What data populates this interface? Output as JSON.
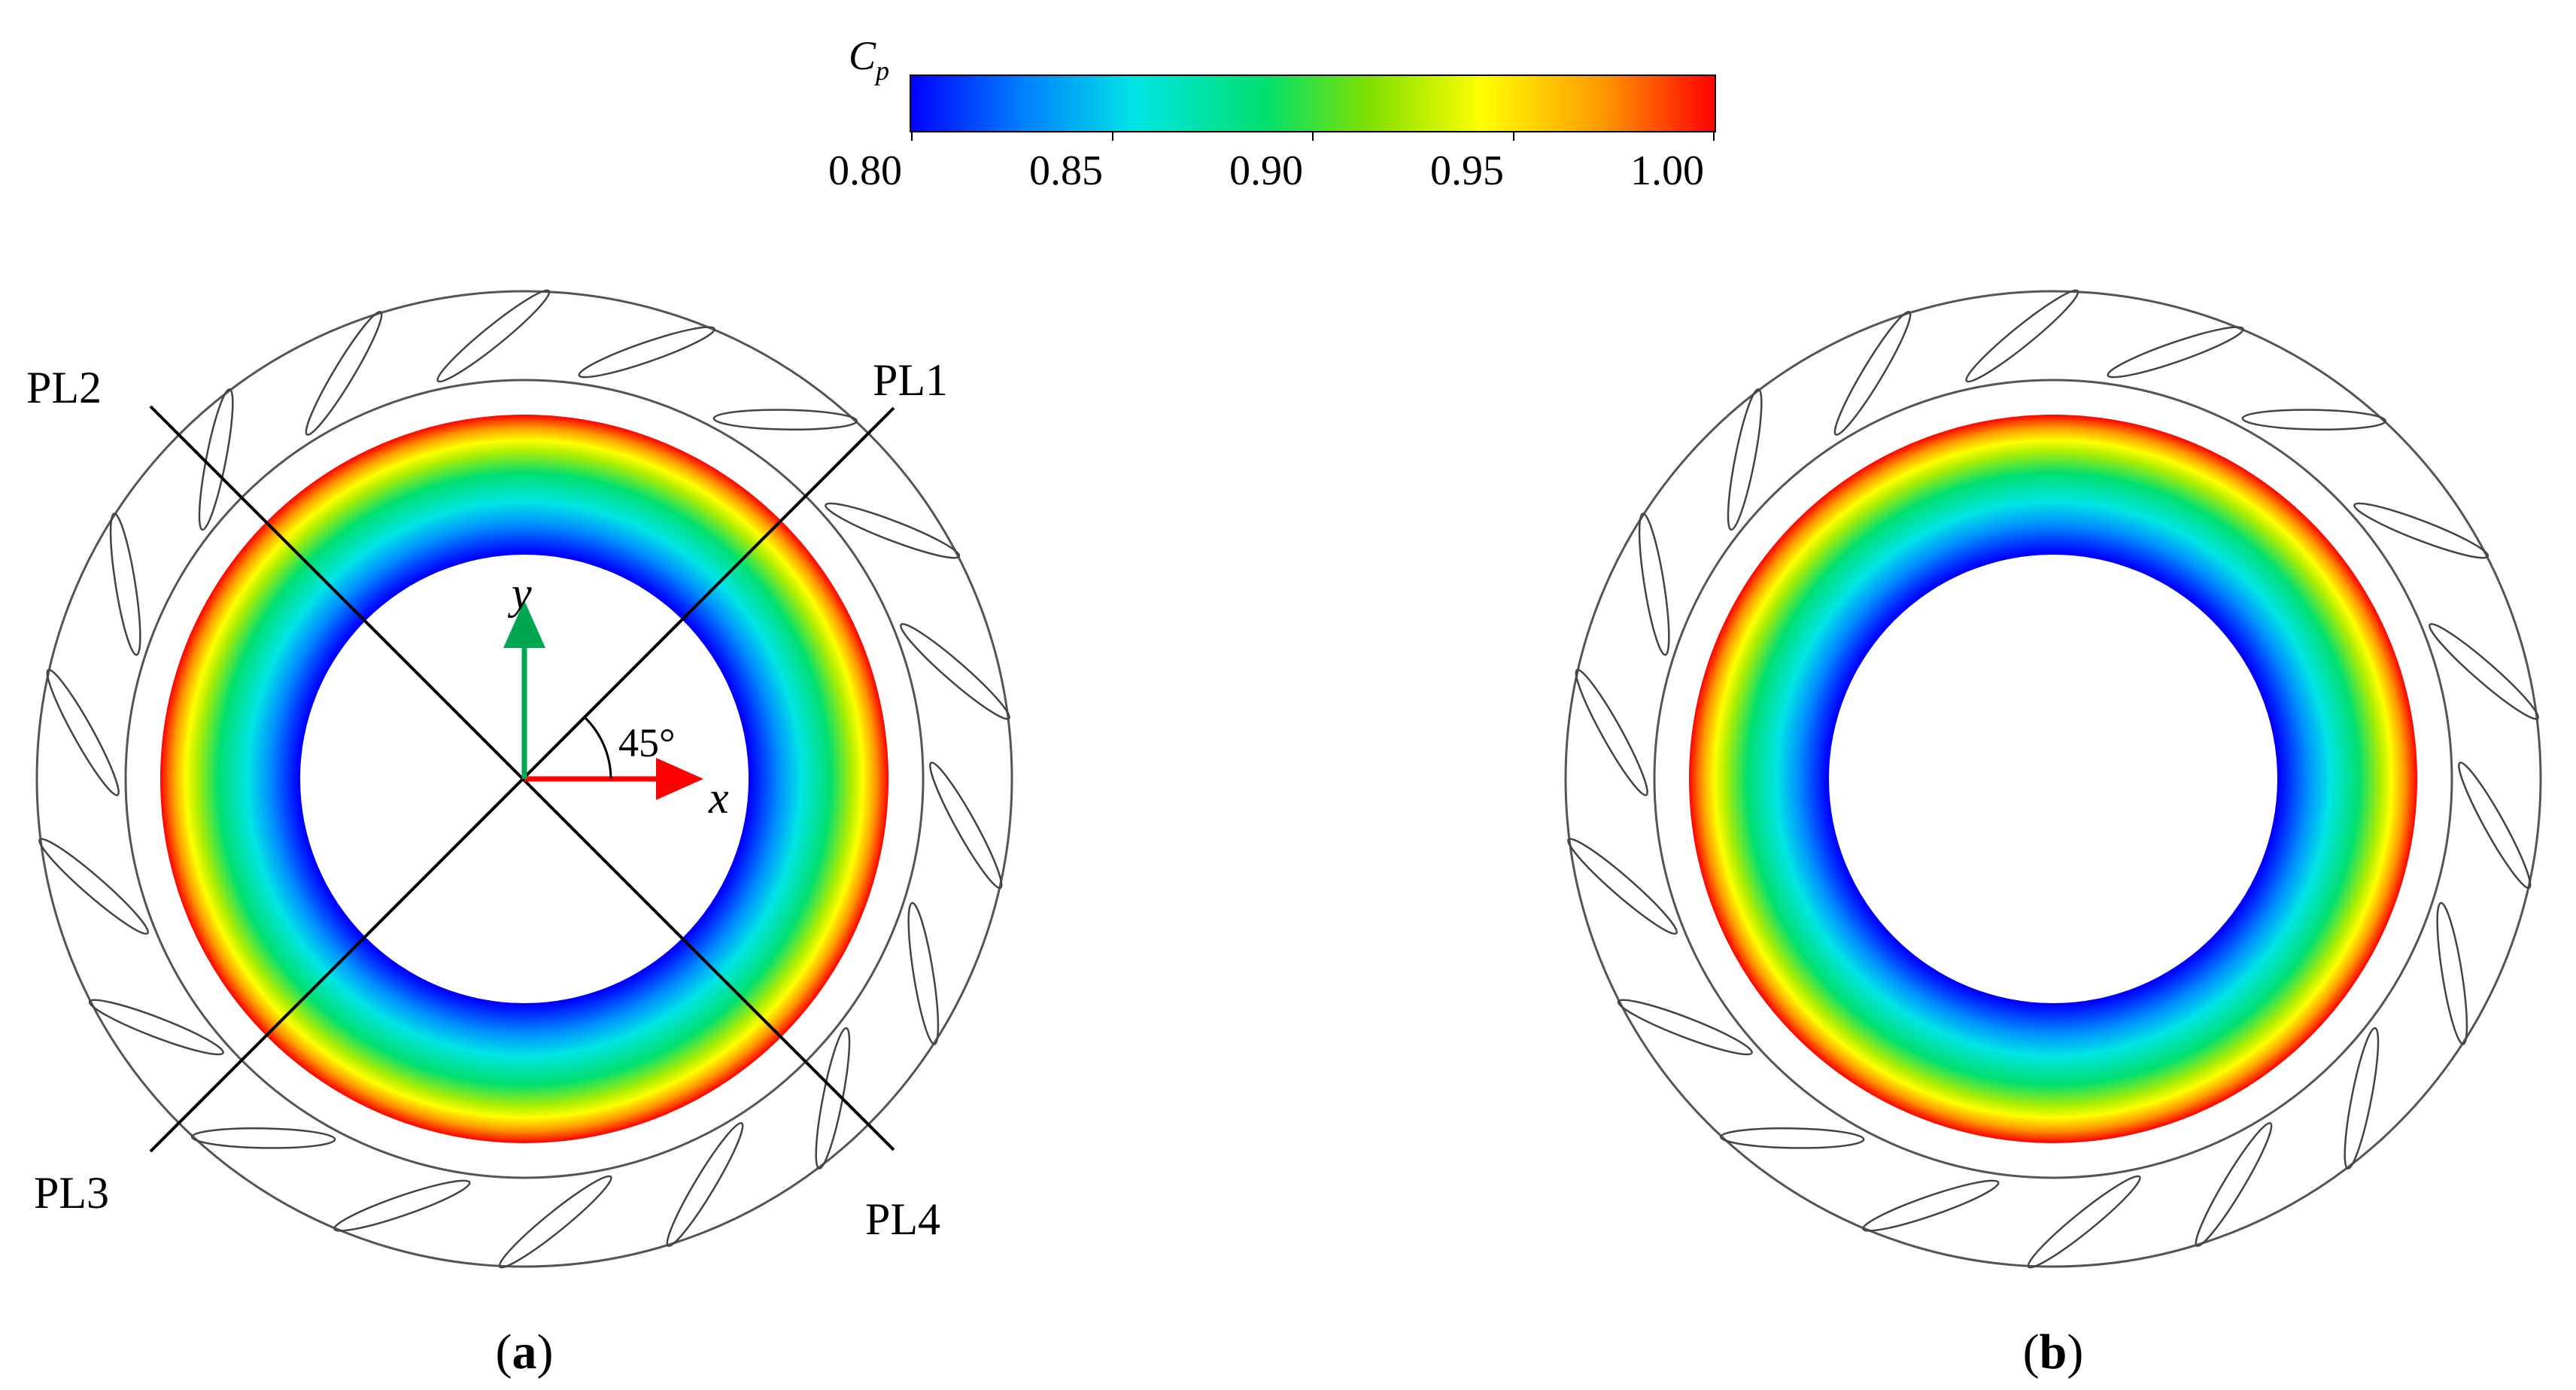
{
  "colorbar": {
    "symbol": "C",
    "subscript": "p",
    "ticks": [
      "0.80",
      "0.85",
      "0.90",
      "0.95",
      "1.00"
    ],
    "colors": [
      "#0000ff",
      "#0080ff",
      "#00e5e5",
      "#00e070",
      "#7fe000",
      "#ffff00",
      "#ff9900",
      "#ff0000"
    ]
  },
  "panel_a": {
    "caption_open": "(",
    "caption_letter": "a",
    "caption_close": ")",
    "line_labels": {
      "pl1": "PL1",
      "pl2": "PL2",
      "pl3": "PL3",
      "pl4": "PL4"
    },
    "axes": {
      "x_label": "x",
      "y_label": "y",
      "angle_label": "45°",
      "x_color": "#ff0000",
      "y_color": "#00a650"
    }
  },
  "panel_b": {
    "caption_open": "(",
    "caption_letter": "b",
    "caption_close": ")"
  },
  "geometry_meta": {
    "vane_count": 18
  }
}
